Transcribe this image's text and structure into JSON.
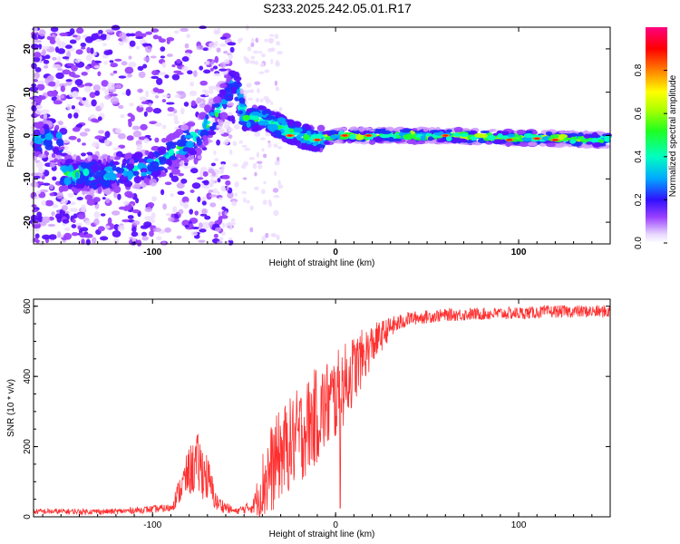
{
  "chart_data": [
    {
      "type": "heatmap",
      "title": "S233.2025.242.05.01.R17",
      "xlabel": "Height of straight line (km)",
      "ylabel": "Frequency (Hz)",
      "xlim": [
        -165,
        150
      ],
      "ylim": [
        -25,
        25
      ],
      "xticks": [
        -100,
        0,
        100
      ],
      "xtick_labels": [
        "-100",
        "0",
        "100"
      ],
      "yticks": [
        -20,
        -10,
        0,
        10,
        20
      ],
      "ytick_labels": [
        "-20",
        "-10",
        "0",
        "10",
        "20"
      ],
      "colorbar": {
        "label": "Normalized spectral amplitude",
        "range": [
          0,
          1
        ],
        "ticks": [
          0.0,
          0.2,
          0.4,
          0.6,
          0.8
        ],
        "tick_labels": [
          "0.0",
          "0.2",
          "0.4",
          "0.6",
          "0.8"
        ]
      },
      "ridge": {
        "description_points": [
          {
            "x": -150,
            "y": -9
          },
          {
            "x": -120,
            "y": -9
          },
          {
            "x": -100,
            "y": -7
          },
          {
            "x": -90,
            "y": -4
          },
          {
            "x": -75,
            "y": 0
          },
          {
            "x": -65,
            "y": 5
          },
          {
            "x": -55,
            "y": 13
          },
          {
            "x": -50,
            "y": 4
          },
          {
            "x": -40,
            "y": 4
          },
          {
            "x": -30,
            "y": 2
          },
          {
            "x": -20,
            "y": 0
          },
          {
            "x": -10,
            "y": -1
          },
          {
            "x": 0,
            "y": 0
          },
          {
            "x": 50,
            "y": 0
          },
          {
            "x": 100,
            "y": -0.5
          },
          {
            "x": 150,
            "y": -1
          }
        ]
      }
    },
    {
      "type": "line",
      "title": "",
      "xlabel": "Height of straight line (km)",
      "ylabel": "SNR (10 * v/v)",
      "xlim": [
        -165,
        150
      ],
      "ylim": [
        0,
        620
      ],
      "xticks": [
        -100,
        0,
        100
      ],
      "xtick_labels": [
        "-100",
        "0",
        "100"
      ],
      "yticks": [
        0,
        200,
        400,
        600
      ],
      "ytick_labels": [
        "0",
        "200",
        "400",
        "600"
      ],
      "color": "#ff3030",
      "series": [
        {
          "name": "SNR",
          "envelope_x": [
            -165,
            -120,
            -90,
            -80,
            -75,
            -70,
            -65,
            -55,
            -45,
            -38,
            -30,
            -20,
            -10,
            0,
            10,
            20,
            30,
            40,
            60,
            80,
            100,
            120,
            150
          ],
          "envelope_mean": [
            15,
            15,
            25,
            130,
            150,
            110,
            40,
            15,
            30,
            110,
            180,
            230,
            290,
            340,
            420,
            490,
            540,
            565,
            575,
            578,
            580,
            585,
            585
          ],
          "envelope_noise": [
            8,
            8,
            12,
            70,
            90,
            70,
            25,
            8,
            20,
            130,
            130,
            140,
            140,
            130,
            100,
            60,
            30,
            20,
            18,
            18,
            18,
            18,
            18
          ]
        }
      ]
    }
  ]
}
